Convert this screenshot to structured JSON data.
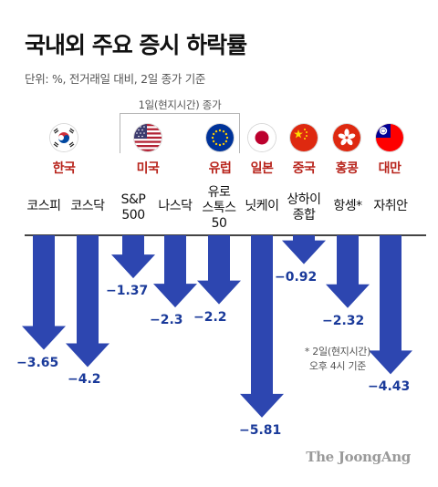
{
  "title": "국내외 주요 증시 하락률",
  "unit_note": "단위: %, 전거래일 대비, 2일 종가 기준",
  "group_note": "1일(현지시간) 종가",
  "footnote_line1": "* 2일(현지시간)",
  "footnote_line2": "오후 4시 기준",
  "logo": "The JoongAng",
  "flags": [
    {
      "region": "한국",
      "icon": "korea-flag-icon"
    },
    {
      "region": "미국",
      "icon": "usa-flag-icon"
    },
    {
      "region": "유럽",
      "icon": "eu-flag-icon"
    },
    {
      "region": "일본",
      "icon": "japan-flag-icon"
    },
    {
      "region": "중국",
      "icon": "china-flag-icon"
    },
    {
      "region": "홍콩",
      "icon": "hongkong-flag-icon"
    },
    {
      "region": "대만",
      "icon": "taiwan-flag-icon"
    }
  ],
  "colors": {
    "bar": "#2d46b0",
    "region": "#b8241c",
    "value": "#1a3a9a"
  },
  "chart_data": {
    "type": "bar",
    "categories": [
      "코스피",
      "코스닥",
      "S&P 500",
      "나스닥",
      "유로 스톡스 50",
      "닛케이",
      "상하이 종합",
      "항셍*",
      "자취안"
    ],
    "category_lines": [
      [
        "코스피"
      ],
      [
        "코스닥"
      ],
      [
        "S&P",
        "500"
      ],
      [
        "나스닥"
      ],
      [
        "유로",
        "스톡스",
        "50"
      ],
      [
        "닛케이"
      ],
      [
        "상하이",
        "종합"
      ],
      [
        "항셍*"
      ],
      [
        "자취안"
      ]
    ],
    "values": [
      -3.65,
      -4.2,
      -1.37,
      -2.3,
      -2.2,
      -5.81,
      -0.92,
      -2.32,
      -4.43
    ],
    "value_labels": [
      "−3.65",
      "−4.2",
      "−1.37",
      "−2.3",
      "−2.2",
      "−5.81",
      "−0.92",
      "−2.32",
      "−4.43"
    ],
    "title": "국내외 주요 증시 하락률",
    "xlabel": "",
    "ylabel": "",
    "ylim": [
      -6,
      0
    ],
    "grid": false,
    "legend": "none"
  }
}
